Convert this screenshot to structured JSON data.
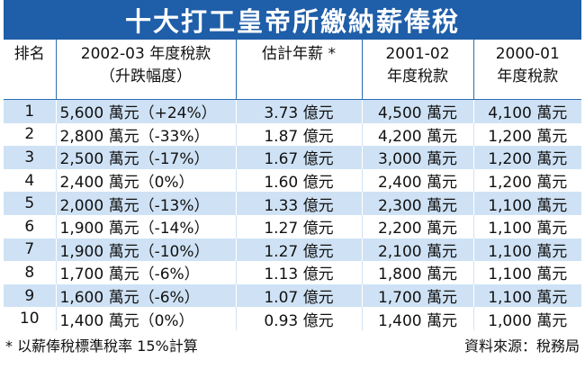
{
  "title": "十大打工皇帝所繳納薪俸稅",
  "columns": {
    "rank": "排名",
    "tax_line1": "2002-03 年度稅款",
    "tax_line2": "（升跌幅度）",
    "estimate": "估計年薪 *",
    "y2001_line1": "2001-02",
    "y2001_line2": "年度稅款",
    "y2000_line1": "2000-01",
    "y2000_line2": "年度稅款"
  },
  "rows": [
    {
      "rank": "1",
      "tax": "5,600 萬元（+24%）",
      "estimate": "3.73 億元",
      "y2001": "4,500 萬元",
      "y2000": "4,100 萬元"
    },
    {
      "rank": "2",
      "tax": "2,800 萬元（-33%）",
      "estimate": "1.87 億元",
      "y2001": "4,200 萬元",
      "y2000": "1,200 萬元"
    },
    {
      "rank": "3",
      "tax": "2,500 萬元（-17%）",
      "estimate": "1.67 億元",
      "y2001": "3,000 萬元",
      "y2000": "1,200 萬元"
    },
    {
      "rank": "4",
      "tax": "2,400 萬元（0%）",
      "estimate": "1.60 億元",
      "y2001": "2,400 萬元",
      "y2000": "1,200 萬元"
    },
    {
      "rank": "5",
      "tax": "2,000 萬元（-13%）",
      "estimate": "1.33 億元",
      "y2001": "2,300 萬元",
      "y2000": "1,100 萬元"
    },
    {
      "rank": "6",
      "tax": "1,900 萬元（-14%）",
      "estimate": "1.27 億元",
      "y2001": "2,200 萬元",
      "y2000": "1,100 萬元"
    },
    {
      "rank": "7",
      "tax": "1,900 萬元（-10%）",
      "estimate": "1.27 億元",
      "y2001": "2,100 萬元",
      "y2000": "1,100 萬元"
    },
    {
      "rank": "8",
      "tax": "1,700 萬元（-6%）",
      "estimate": "1.13 億元",
      "y2001": "1,800 萬元",
      "y2000": "1,100 萬元"
    },
    {
      "rank": "9",
      "tax": "1,600 萬元（-6%）",
      "estimate": "1.07 億元",
      "y2001": "1,700 萬元",
      "y2000": "1,100 萬元"
    },
    {
      "rank": "10",
      "tax": "1,400 萬元（0%）",
      "estimate": "0.93 億元",
      "y2001": "1,400 萬元",
      "y2000": "1,000 萬元"
    }
  ],
  "footer": {
    "note": "* 以薪俸稅標準稅率 15%計算",
    "source": "資料來源：稅務局"
  },
  "colors": {
    "title_bg": "#1f5ea8",
    "row_shade": "#cfe2f5",
    "grid": "#2a6db4"
  }
}
